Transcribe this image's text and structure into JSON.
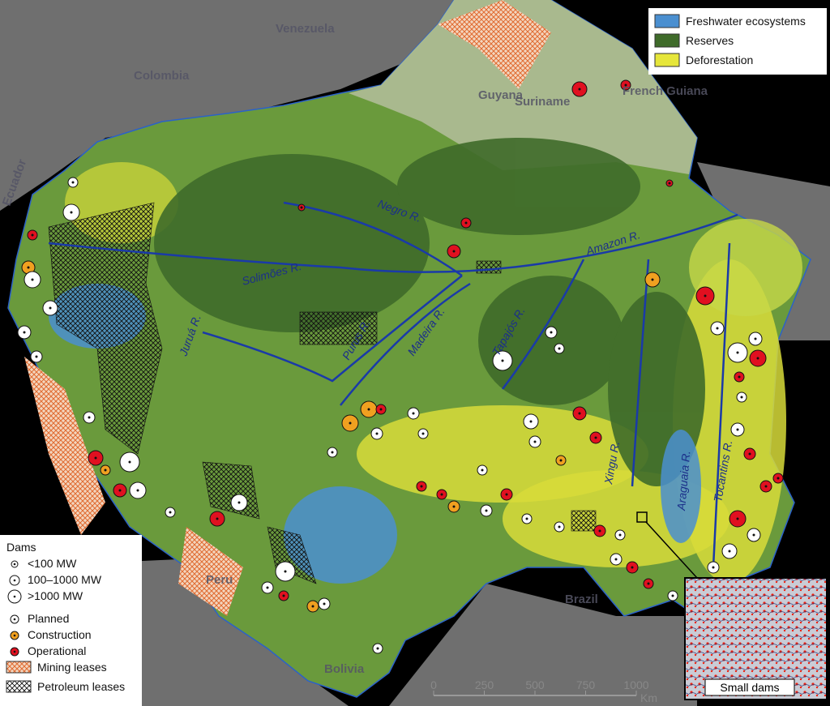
{
  "legend_top": {
    "items": [
      {
        "label": "Freshwater ecosystems",
        "color": "#4a8fd0"
      },
      {
        "label": "Reserves",
        "color": "#3f6b2a"
      },
      {
        "label": "Deforestation",
        "color": "#e6e63a"
      }
    ]
  },
  "countries": [
    "Venezuela",
    "Colombia",
    "Guyana",
    "Suriname",
    "French Guiana",
    "Ecuador",
    "Peru",
    "Brazil",
    "Bolivia"
  ],
  "rivers": [
    "Negro R.",
    "Amazon R.",
    "Solimões R.",
    "Juruá R.",
    "Purus R.",
    "Madeira R.",
    "Tapajós R.",
    "Xingu R.",
    "Araguaia R.",
    "Tocantins R."
  ],
  "dams_legend": {
    "title": "Dams",
    "sizes": [
      "<100 MW",
      "100–1000 MW",
      ">1000 MW"
    ],
    "status": [
      {
        "label": "Planned",
        "color": "#ffffff"
      },
      {
        "label": "Construction",
        "color": "#f0a020"
      },
      {
        "label": "Operational",
        "color": "#e01020"
      }
    ],
    "leases": [
      "Mining leases",
      "Petroleum leases"
    ]
  },
  "scale_bar": {
    "ticks": [
      0,
      250,
      500,
      750,
      1000
    ],
    "unit": "Km"
  },
  "inset": {
    "label": "Small dams"
  }
}
